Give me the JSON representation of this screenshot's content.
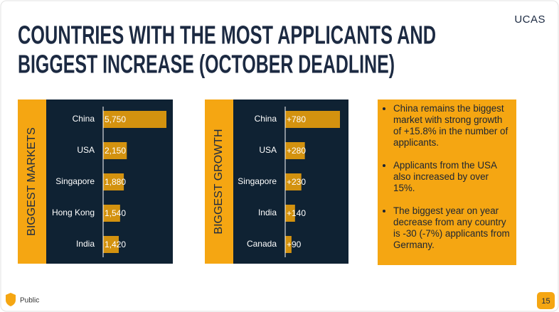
{
  "header": {
    "title_lines": [
      "COUNTRIES WITH THE MOST APPLICANTS AND",
      "BIGGEST INCREASE (OCTOBER DEADLINE)"
    ],
    "logo": "UCAS"
  },
  "chart_data": [
    {
      "type": "bar",
      "orientation": "horizontal",
      "label": "BIGGEST MARKETS",
      "categories": [
        "China",
        "USA",
        "Singapore",
        "Hong Kong",
        "India"
      ],
      "values": [
        5750,
        2150,
        1880,
        1540,
        1420
      ],
      "value_labels": [
        "5,750",
        "2,150",
        "1,880",
        "1,540",
        "1,420"
      ],
      "color": "#d3920f"
    },
    {
      "type": "bar",
      "orientation": "horizontal",
      "label": "BIGGEST GROWTH",
      "categories": [
        "China",
        "USA",
        "Singapore",
        "India",
        "Canada"
      ],
      "values": [
        780,
        280,
        230,
        140,
        90
      ],
      "value_labels": [
        "+780",
        "+280",
        "+230",
        "+140",
        "+90"
      ],
      "color": "#d3920f"
    }
  ],
  "notes": [
    "China remains the biggest market with strong growth of +15.8% in the number of applicants.",
    "Applicants from the USA also increased by over 15%.",
    "The biggest year on year decrease from any country is -30 (-7%) applicants from Germany."
  ],
  "footer": {
    "classification": "Public",
    "page": "15"
  }
}
